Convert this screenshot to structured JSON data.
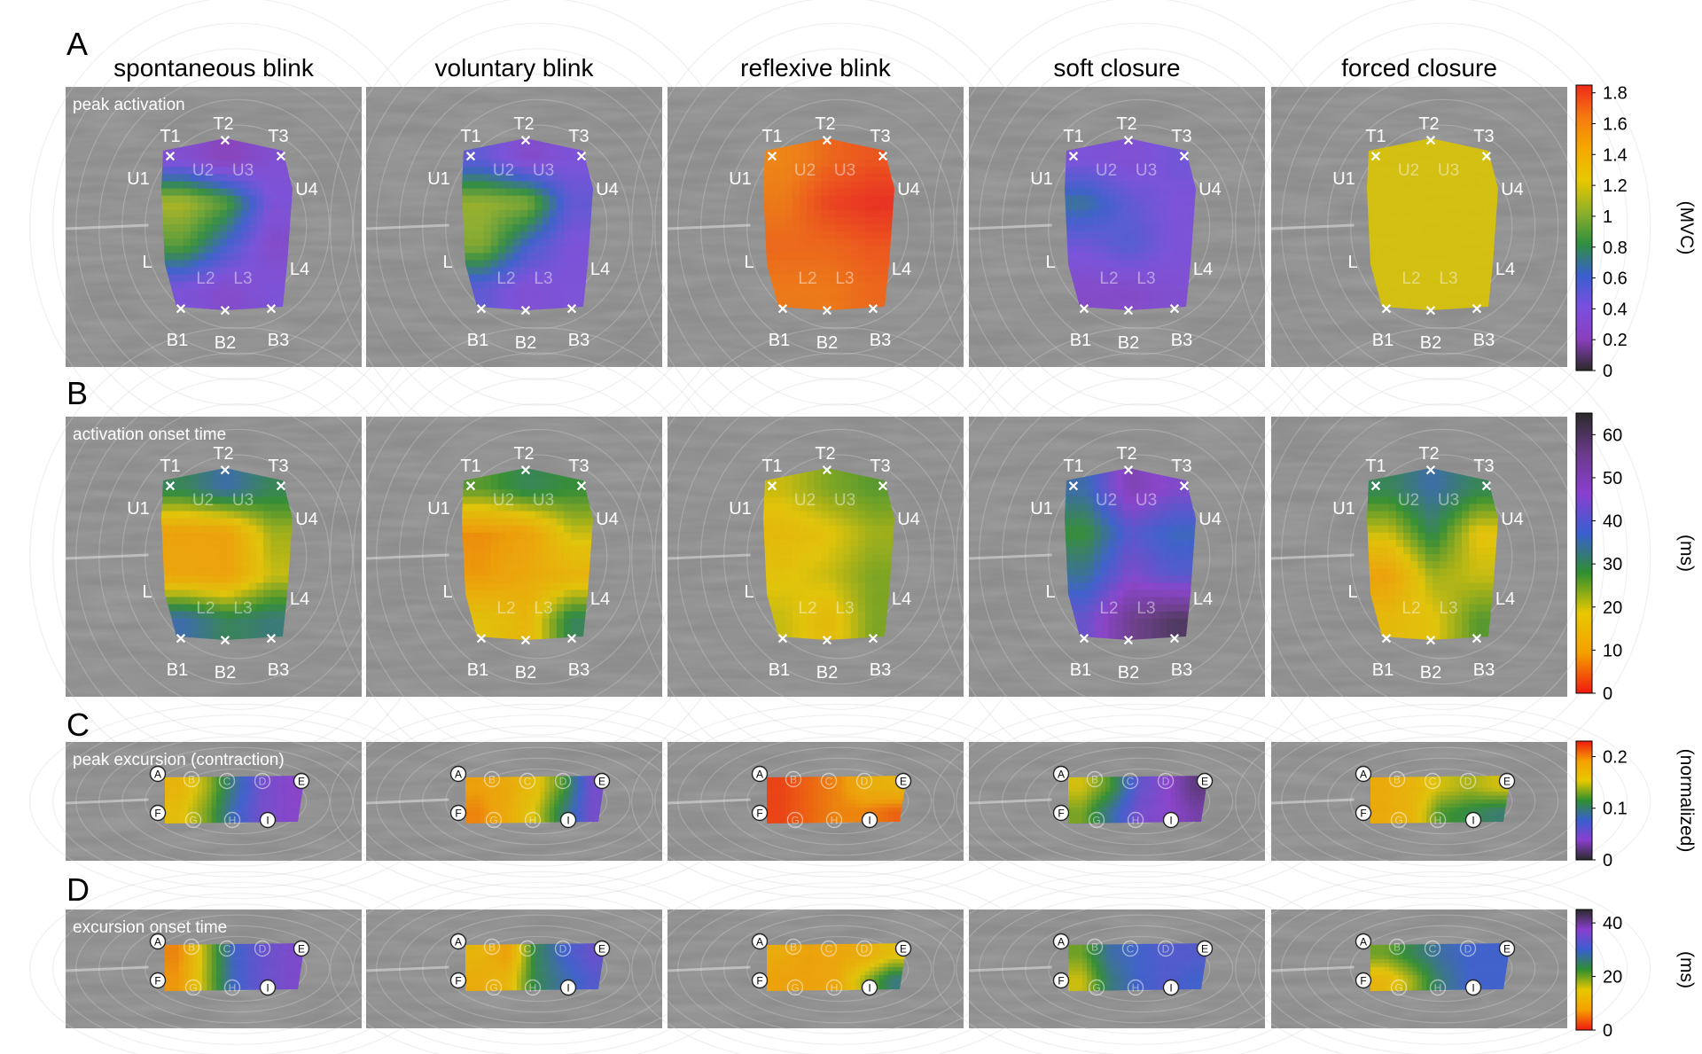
{
  "figure": {
    "conditions": [
      "spontaneous blink",
      "voluntary blink",
      "reflexive blink",
      "soft closure",
      "forced closure"
    ],
    "panels": [
      {
        "letter": "A",
        "label": "peak activation",
        "colorbar": {
          "unit": "(MVC)",
          "ticks": [
            "0",
            "0.2",
            "0.4",
            "0.6",
            "0.8",
            "1",
            "1.2",
            "1.4",
            "1.6",
            "1.8"
          ],
          "range": [
            0,
            1.85
          ],
          "colors": [
            "#2a2a2a",
            "#8a3fbf",
            "#7a4fe0",
            "#3a5fd0",
            "#2f8f3f",
            "#8fb02a",
            "#e8c800",
            "#f5a800",
            "#f57a10",
            "#f02a1a"
          ]
        },
        "grid_columns": 3,
        "values": [
          [
            0.35,
            0.2,
            0.35,
            1.1,
            0.9,
            0.4,
            0.9,
            0.6,
            0.3,
            0.4,
            0.3,
            0.4
          ],
          [
            0.5,
            0.3,
            0.4,
            1.05,
            1.0,
            0.5,
            1.0,
            0.6,
            0.4,
            0.5,
            0.35,
            0.4
          ],
          [
            1.6,
            1.7,
            1.75,
            1.65,
            1.8,
            1.85,
            1.7,
            1.7,
            1.75,
            1.65,
            1.65,
            1.7
          ],
          [
            0.4,
            0.35,
            0.45,
            0.7,
            0.5,
            0.4,
            0.45,
            0.55,
            0.4,
            0.3,
            0.3,
            0.35
          ],
          [
            1.2,
            1.2,
            1.2,
            1.2,
            1.2,
            1.2,
            1.2,
            1.2,
            1.2,
            1.2,
            1.2,
            1.2
          ]
        ]
      },
      {
        "letter": "B",
        "label": "activation onset time",
        "colorbar": {
          "unit": "(ms)",
          "ticks": [
            "0",
            "10",
            "20",
            "30",
            "40",
            "50",
            "60"
          ],
          "range": [
            0,
            65
          ],
          "colors": [
            "#f01a10",
            "#f5a000",
            "#e8c800",
            "#2f8f2f",
            "#3a5fd0",
            "#8a3fd0",
            "#6a3a8a",
            "#2a2a2a"
          ]
        },
        "grid_columns": 3,
        "values": [
          [
            30,
            35,
            30,
            10,
            10,
            22,
            11,
            10,
            20,
            35,
            30,
            32
          ],
          [
            26,
            30,
            28,
            8,
            10,
            20,
            9,
            12,
            14,
            18,
            15,
            30
          ],
          [
            20,
            24,
            26,
            16,
            18,
            22,
            18,
            20,
            24,
            20,
            16,
            24
          ],
          [
            35,
            50,
            45,
            28,
            40,
            36,
            34,
            45,
            40,
            42,
            55,
            60
          ],
          [
            30,
            35,
            30,
            20,
            30,
            18,
            10,
            22,
            20,
            16,
            18,
            26
          ]
        ]
      },
      {
        "letter": "C",
        "label": "peak excursion (contraction)",
        "colorbar": {
          "unit": "(normalized)",
          "ticks": [
            "0",
            "0.1",
            "0.2"
          ],
          "range": [
            0,
            0.23
          ],
          "colors": [
            "#2a2a2a",
            "#8a3fd0",
            "#3a5fd0",
            "#2f8f2f",
            "#e8c800",
            "#f5a000",
            "#f01a10"
          ]
        },
        "grid_columns": 5,
        "markers": [
          "A",
          "B",
          "C",
          "D",
          "E",
          "F",
          "G",
          "H",
          "I"
        ],
        "values": [
          [
            0.17,
            0.14,
            0.09,
            0.05,
            0.04,
            0.16,
            0.13,
            0.08,
            0.05,
            0.04
          ],
          [
            0.19,
            0.18,
            0.16,
            0.12,
            0.05,
            0.2,
            0.18,
            0.15,
            0.1,
            0.05
          ],
          [
            0.22,
            0.21,
            0.2,
            0.18,
            0.17,
            0.22,
            0.21,
            0.2,
            0.2,
            0.21
          ],
          [
            0.15,
            0.12,
            0.06,
            0.04,
            0.02,
            0.13,
            0.09,
            0.05,
            0.04,
            0.03
          ],
          [
            0.18,
            0.17,
            0.15,
            0.14,
            0.15,
            0.18,
            0.17,
            0.12,
            0.11,
            0.1
          ]
        ]
      },
      {
        "letter": "D",
        "label": "excursion onset time",
        "colorbar": {
          "unit": "(ms)",
          "ticks": [
            "0",
            "20",
            "40"
          ],
          "range": [
            0,
            45
          ],
          "colors": [
            "#f01a10",
            "#f5a000",
            "#e8c800",
            "#2f8f2f",
            "#3a5fd0",
            "#8a3fd0",
            "#2a2a2a"
          ]
        },
        "grid_columns": 5,
        "markers": [
          "A",
          "B",
          "C",
          "D",
          "E",
          "F",
          "G",
          "H",
          "I"
        ],
        "values": [
          [
            6,
            18,
            30,
            34,
            36,
            7,
            18,
            30,
            34,
            36
          ],
          [
            12,
            8,
            24,
            30,
            34,
            10,
            12,
            24,
            28,
            32
          ],
          [
            10,
            8,
            9,
            10,
            14,
            8,
            8,
            9,
            18,
            26
          ],
          [
            20,
            28,
            30,
            32,
            32,
            16,
            26,
            30,
            32,
            30
          ],
          [
            20,
            24,
            28,
            30,
            30,
            12,
            18,
            26,
            30,
            30
          ]
        ]
      }
    ]
  }
}
